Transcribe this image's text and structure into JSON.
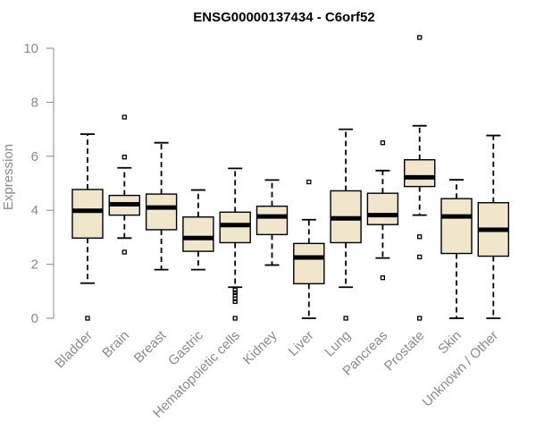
{
  "chart_data": {
    "type": "boxplot",
    "title": "ENSG00000137434 - C6orf52",
    "xlabel": "",
    "ylabel": "Expression",
    "ylim": [
      0,
      10.5
    ],
    "yticks": [
      0,
      2,
      4,
      6,
      8,
      10
    ],
    "categories": [
      "Bladder",
      "Brain",
      "Breast",
      "Gastric",
      "Hematopoietic cells",
      "Kidney",
      "Liver",
      "Lung",
      "Pancreas",
      "Prostate",
      "Skin",
      "Unknown / Other"
    ],
    "box_color": "#efe6cc",
    "boxes": [
      {
        "label": "Bladder",
        "whisker_low": 1.3,
        "q1": 2.97,
        "median": 3.98,
        "q3": 4.77,
        "whisker_high": 6.82,
        "outliers": [
          0.0
        ]
      },
      {
        "label": "Brain",
        "whisker_low": 2.97,
        "q1": 3.82,
        "median": 4.22,
        "q3": 4.55,
        "whisker_high": 5.57,
        "outliers": [
          7.45,
          5.97,
          2.45
        ]
      },
      {
        "label": "Breast",
        "whisker_low": 1.8,
        "q1": 3.28,
        "median": 4.1,
        "q3": 4.6,
        "whisker_high": 6.5,
        "outliers": []
      },
      {
        "label": "Gastric",
        "whisker_low": 1.8,
        "q1": 2.48,
        "median": 2.97,
        "q3": 3.75,
        "whisker_high": 4.75,
        "outliers": []
      },
      {
        "label": "Hematopoietic cells",
        "whisker_low": 1.15,
        "q1": 2.8,
        "median": 3.45,
        "q3": 3.93,
        "whisker_high": 5.55,
        "outliers": [
          1.05,
          0.95,
          0.85,
          0.72,
          0.62,
          0.0
        ]
      },
      {
        "label": "Kidney",
        "whisker_low": 1.97,
        "q1": 3.1,
        "median": 3.77,
        "q3": 4.15,
        "whisker_high": 5.12,
        "outliers": []
      },
      {
        "label": "Liver",
        "whisker_low": 0.0,
        "q1": 1.28,
        "median": 2.25,
        "q3": 2.77,
        "whisker_high": 3.65,
        "outliers": [
          5.05
        ]
      },
      {
        "label": "Lung",
        "whisker_low": 1.15,
        "q1": 2.8,
        "median": 3.7,
        "q3": 4.72,
        "whisker_high": 7.0,
        "outliers": [
          0.0
        ]
      },
      {
        "label": "Pancreas",
        "whisker_low": 2.23,
        "q1": 3.47,
        "median": 3.82,
        "q3": 4.63,
        "whisker_high": 5.47,
        "outliers": [
          6.5,
          1.5
        ]
      },
      {
        "label": "Prostate",
        "whisker_low": 3.82,
        "q1": 4.88,
        "median": 5.22,
        "q3": 5.87,
        "whisker_high": 7.13,
        "outliers": [
          10.4,
          3.02,
          2.27,
          0.0
        ]
      },
      {
        "label": "Skin",
        "whisker_low": 0.0,
        "q1": 2.4,
        "median": 3.77,
        "q3": 4.43,
        "whisker_high": 5.13,
        "outliers": []
      },
      {
        "label": "Unknown / Other",
        "whisker_low": 0.0,
        "q1": 2.3,
        "median": 3.28,
        "q3": 4.28,
        "whisker_high": 6.77,
        "outliers": []
      }
    ]
  }
}
